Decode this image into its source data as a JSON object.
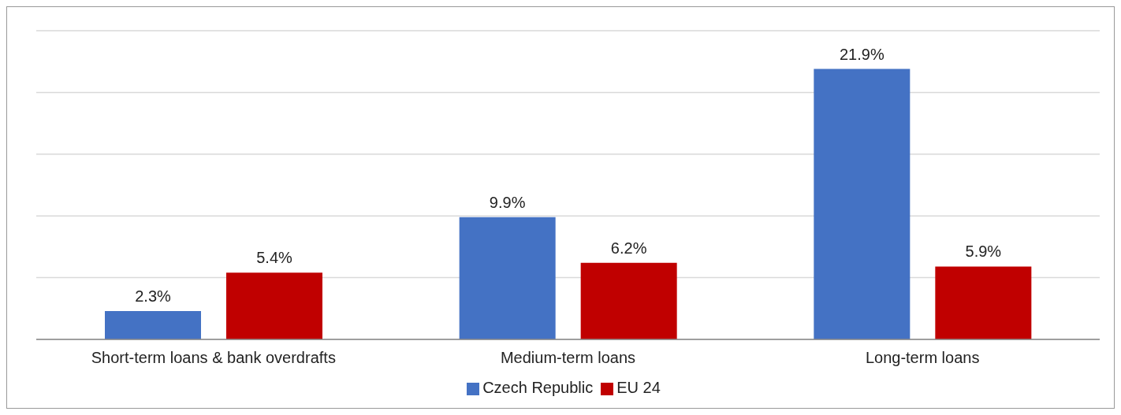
{
  "chart_data": {
    "type": "bar",
    "categories": [
      "Short-term loans & bank overdrafts",
      "Medium-term loans",
      "Long-term loans"
    ],
    "series": [
      {
        "name": "Czech Republic",
        "color": "#4472c4",
        "values": [
          2.3,
          9.9,
          21.9
        ],
        "value_labels": [
          "2.3%",
          "9.9%",
          "21.9%"
        ]
      },
      {
        "name": "EU 24",
        "color": "#c00000",
        "values": [
          5.4,
          6.2,
          5.9
        ],
        "value_labels": [
          "5.4%",
          "6.2%",
          "5.9%"
        ]
      }
    ],
    "ylim": [
      0,
      25
    ],
    "yticks": [
      {
        "value": 0,
        "label": null
      },
      {
        "value": 5,
        "label": null
      },
      {
        "value": 10,
        "label": null
      },
      {
        "value": 15,
        "label": null
      },
      {
        "value": 20,
        "label": null
      },
      {
        "value": 25,
        "label": null
      }
    ],
    "tick_labels": "x",
    "grid": "y",
    "legend": "bottom"
  }
}
